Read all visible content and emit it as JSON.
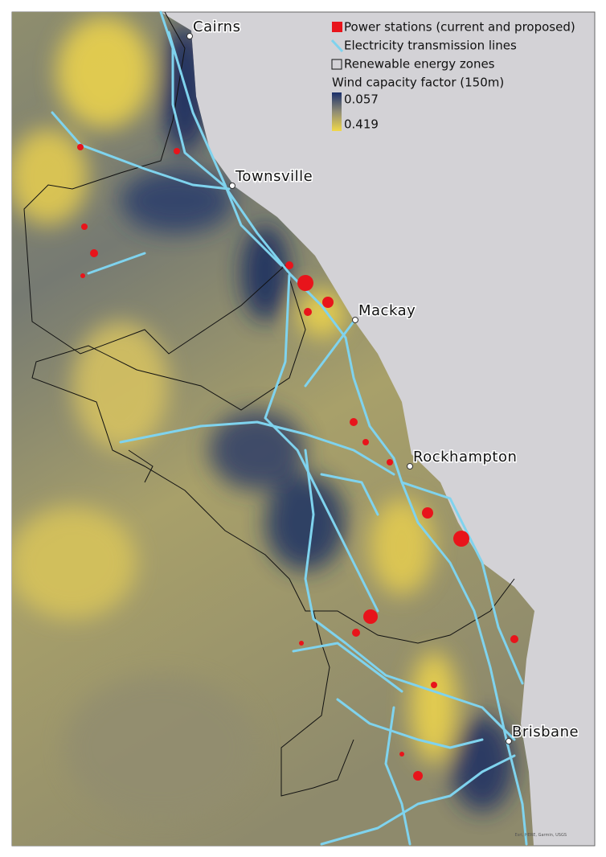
{
  "legend": {
    "items": [
      "Power stations (current and proposed)",
      "Electricity transmission lines",
      "Renewable energy zones"
    ],
    "scale_title": "Wind capacity factor (150m)",
    "scale_top": 0.057,
    "scale_bottom": 0.419
  },
  "places": [
    "Cairns",
    "Townsville",
    "Mackay",
    "Rockhampton",
    "Brisbane"
  ],
  "attribution": "Esri, HERE, Garmin, USGS"
}
